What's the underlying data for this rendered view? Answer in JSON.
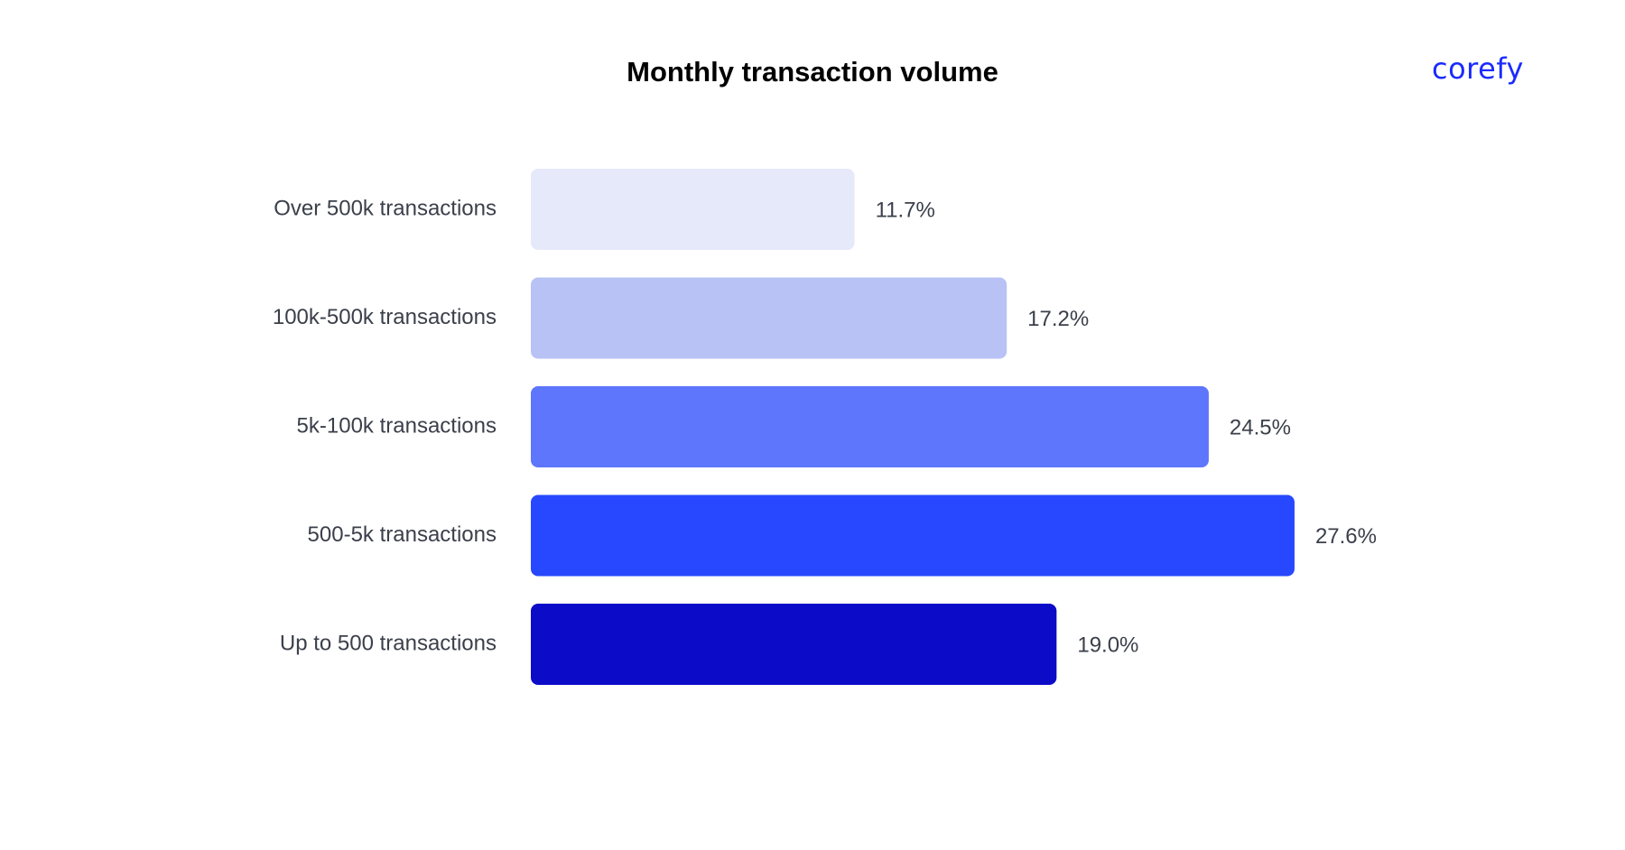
{
  "brand": {
    "logo_text": "corefy",
    "color": "#1a2bff"
  },
  "chart_data": {
    "type": "bar",
    "orientation": "horizontal",
    "title": "Monthly transaction volume",
    "categories": [
      "Over 500k transactions",
      "100k-500k transactions",
      "5k-100k transactions",
      "500-5k transactions",
      "Up to 500 transactions"
    ],
    "values": [
      11.7,
      17.2,
      24.5,
      27.6,
      19.0
    ],
    "value_labels": [
      "11.7%",
      "17.2%",
      "24.5%",
      "27.6%",
      "19.0%"
    ],
    "unit": "%",
    "colors": [
      "#e6e9fa",
      "#b8c2f4",
      "#5e76fb",
      "#2748ff",
      "#0b0bc8"
    ],
    "xlim": [
      0,
      30
    ],
    "grid": false,
    "legend": "none"
  }
}
